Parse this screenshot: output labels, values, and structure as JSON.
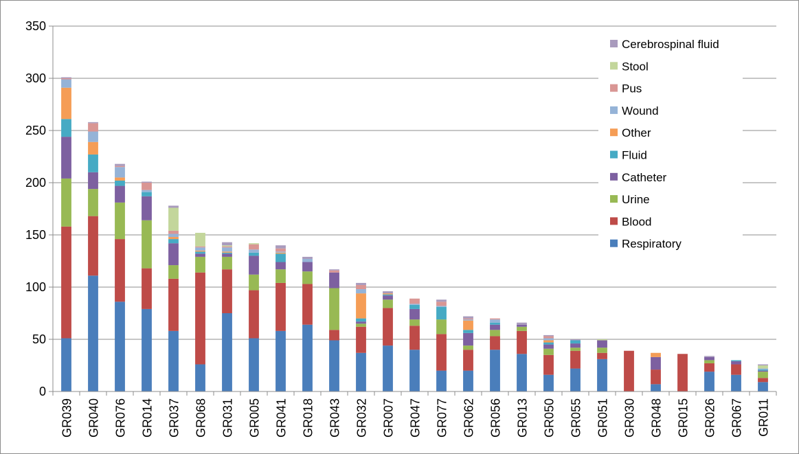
{
  "chart_data": {
    "type": "bar",
    "stacked": true,
    "title": "",
    "xlabel": "",
    "ylabel": "",
    "ylim": [
      0,
      350
    ],
    "yticks": [
      0,
      50,
      100,
      150,
      200,
      250,
      300,
      350
    ],
    "grid": "horizontal",
    "legend_position": "top-right",
    "categories": [
      "GR039",
      "GR040",
      "GR076",
      "GR014",
      "GR037",
      "GR068",
      "GR031",
      "GR005",
      "GR041",
      "GR018",
      "GR043",
      "GR032",
      "GR007",
      "GR047",
      "GR077",
      "GR062",
      "GR056",
      "GR013",
      "GR050",
      "GR055",
      "GR051",
      "GR030",
      "GR048",
      "GR015",
      "GR026",
      "GR067",
      "GR011"
    ],
    "series": [
      {
        "name": "Respiratory",
        "color": "#4a7ebb",
        "values": [
          51,
          111,
          86,
          79,
          58,
          26,
          75,
          51,
          58,
          64,
          49,
          37,
          44,
          40,
          20,
          20,
          40,
          36,
          16,
          22,
          31,
          0,
          7,
          0,
          19,
          16,
          9
        ]
      },
      {
        "name": "Blood",
        "color": "#be4b48",
        "values": [
          107,
          57,
          60,
          39,
          50,
          88,
          42,
          46,
          46,
          39,
          10,
          25,
          36,
          23,
          35,
          20,
          13,
          22,
          19,
          17,
          6,
          39,
          14,
          36,
          8,
          10,
          4
        ]
      },
      {
        "name": "Urine",
        "color": "#98b954",
        "values": [
          46,
          26,
          35,
          46,
          13,
          15,
          12,
          15,
          13,
          12,
          40,
          3,
          8,
          6,
          14,
          4,
          6,
          4,
          6,
          3,
          5,
          0,
          0,
          0,
          3,
          0,
          6
        ]
      },
      {
        "name": "Catheter",
        "color": "#7d60a0",
        "values": [
          40,
          16,
          16,
          23,
          21,
          3,
          3,
          18,
          7,
          9,
          15,
          2,
          4,
          10,
          0,
          12,
          5,
          2,
          4,
          4,
          7,
          0,
          12,
          0,
          3,
          3,
          1
        ]
      },
      {
        "name": "Fluid",
        "color": "#46aac4",
        "values": [
          17,
          17,
          5,
          4,
          4,
          2,
          1,
          3,
          8,
          0,
          0,
          3,
          1,
          4,
          12,
          3,
          2,
          0,
          2,
          3,
          0,
          0,
          0,
          0,
          0,
          1,
          1
        ]
      },
      {
        "name": "Other",
        "color": "#f59d56",
        "values": [
          30,
          12,
          3,
          0,
          2,
          1,
          1,
          0,
          1,
          0,
          0,
          24,
          1,
          0,
          0,
          9,
          0,
          0,
          2,
          0,
          0,
          0,
          4,
          0,
          0,
          0,
          0
        ]
      },
      {
        "name": "Wound",
        "color": "#95b3d7",
        "values": [
          8,
          10,
          10,
          2,
          3,
          3,
          4,
          3,
          1,
          3,
          0,
          4,
          0,
          1,
          1,
          1,
          3,
          0,
          2,
          0,
          0,
          0,
          0,
          0,
          0,
          0,
          1
        ]
      },
      {
        "name": "Pus",
        "color": "#d99694",
        "values": [
          1,
          8,
          1,
          7,
          3,
          1,
          1,
          5,
          3,
          0,
          2,
          4,
          0,
          5,
          4,
          1,
          1,
          0,
          2,
          0,
          0,
          0,
          0,
          0,
          0,
          0,
          0
        ]
      },
      {
        "name": "Stool",
        "color": "#c3d69b",
        "values": [
          0,
          0,
          0,
          0,
          22,
          13,
          1,
          1,
          0,
          0,
          0,
          0,
          0,
          0,
          0,
          0,
          0,
          0,
          0,
          0,
          1,
          0,
          0,
          0,
          0,
          0,
          3
        ]
      },
      {
        "name": "Cerebrospinal fluid",
        "color": "#a99bbd",
        "values": [
          1,
          1,
          2,
          1,
          2,
          0,
          3,
          0,
          3,
          2,
          1,
          2,
          2,
          0,
          2,
          2,
          0,
          2,
          1,
          1,
          0,
          0,
          0,
          0,
          1,
          0,
          1
        ]
      }
    ]
  }
}
